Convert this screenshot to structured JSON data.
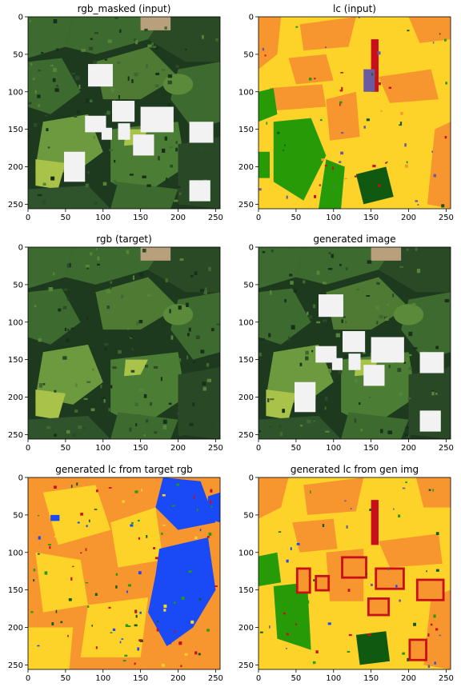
{
  "figure": {
    "panels": [
      {
        "id": "rgb_masked",
        "title": "rgb_masked (input)",
        "kind": "rgb",
        "masked": true
      },
      {
        "id": "lc_input",
        "title": "lc (input)",
        "kind": "lc_input"
      },
      {
        "id": "rgb_target",
        "title": "rgb (target)",
        "kind": "rgb",
        "masked": false
      },
      {
        "id": "generated_image",
        "title": "generated image",
        "kind": "rgb",
        "masked": true
      },
      {
        "id": "gen_lc_target",
        "title": "generated lc from target rgb",
        "kind": "lc_target"
      },
      {
        "id": "gen_lc_gen",
        "title": "generated lc from gen img",
        "kind": "lc_gen"
      }
    ],
    "x_ticks": [
      "0",
      "50",
      "100",
      "150",
      "200",
      "250"
    ],
    "y_ticks": [
      "0",
      "50",
      "100",
      "150",
      "200",
      "250"
    ],
    "palette": {
      "yellow": "#fdd32a",
      "orange": "#f7962e",
      "green": "#279a08",
      "dark_green": "#0f5a10",
      "red": "#c8101a",
      "blue": "#1a4af5",
      "purple": "#6a5aa0",
      "mask": "#f2f2f2",
      "rgb_dark": "#1e3a1e",
      "rgb_mid": "#3d6b2f",
      "rgb_light": "#6d9a3e",
      "rgb_lime": "#a9c24a",
      "rgb_tan": "#b8a07c"
    }
  }
}
